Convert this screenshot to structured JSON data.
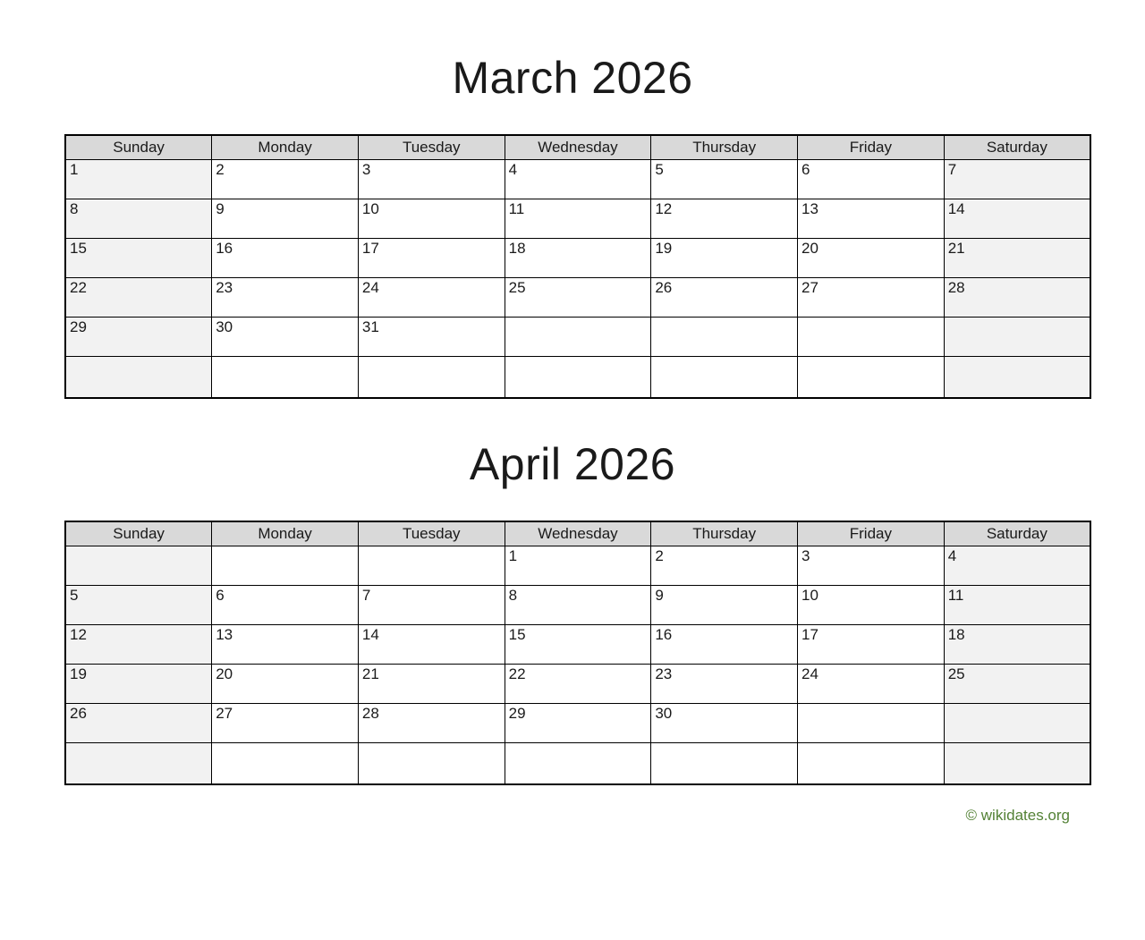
{
  "months": [
    {
      "title": "March 2026",
      "day_headers": [
        "Sunday",
        "Monday",
        "Tuesday",
        "Wednesday",
        "Thursday",
        "Friday",
        "Saturday"
      ],
      "weeks": [
        [
          "1",
          "2",
          "3",
          "4",
          "5",
          "6",
          "7"
        ],
        [
          "8",
          "9",
          "10",
          "11",
          "12",
          "13",
          "14"
        ],
        [
          "15",
          "16",
          "17",
          "18",
          "19",
          "20",
          "21"
        ],
        [
          "22",
          "23",
          "24",
          "25",
          "26",
          "27",
          "28"
        ],
        [
          "29",
          "30",
          "31",
          "",
          "",
          "",
          ""
        ],
        [
          "",
          "",
          "",
          "",
          "",
          "",
          ""
        ]
      ]
    },
    {
      "title": "April 2026",
      "day_headers": [
        "Sunday",
        "Monday",
        "Tuesday",
        "Wednesday",
        "Thursday",
        "Friday",
        "Saturday"
      ],
      "weeks": [
        [
          "",
          "",
          "",
          "1",
          "2",
          "3",
          "4"
        ],
        [
          "5",
          "6",
          "7",
          "8",
          "9",
          "10",
          "11"
        ],
        [
          "12",
          "13",
          "14",
          "15",
          "16",
          "17",
          "18"
        ],
        [
          "19",
          "20",
          "21",
          "22",
          "23",
          "24",
          "25"
        ],
        [
          "26",
          "27",
          "28",
          "29",
          "30",
          "",
          ""
        ],
        [
          "",
          "",
          "",
          "",
          "",
          "",
          ""
        ]
      ]
    }
  ],
  "footer": {
    "copyright": "© wikidates.org"
  },
  "colors": {
    "header_bg": "#d9d9d9",
    "weekend_bg": "#f2f2f2",
    "border": "#000000",
    "footer_text": "#538135"
  }
}
